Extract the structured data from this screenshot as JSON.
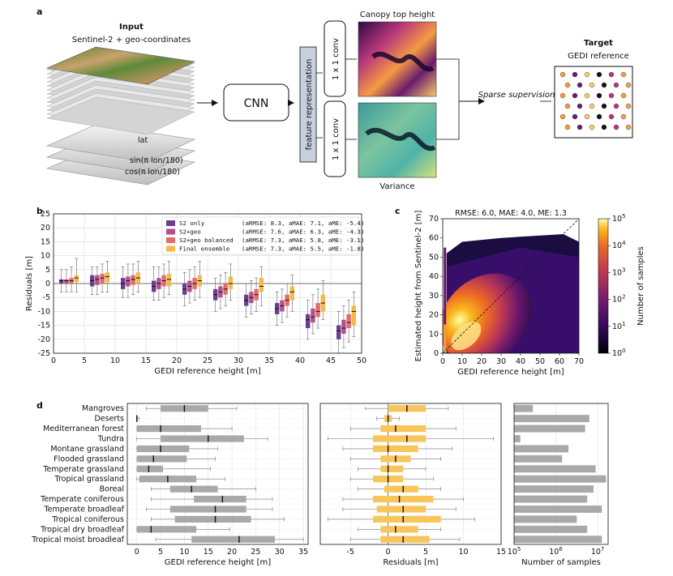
{
  "panel_a": {
    "letter": "a",
    "input_title": "Input",
    "input_subtitle": "Sentinel-2 + geo-coordinates",
    "layer_lat": "lat",
    "layer_sin": "sin(π lon/180)",
    "layer_cos": "cos(π lon/180)",
    "cnn": "CNN",
    "feature": "feature representation",
    "conv_top": "1 x 1 conv",
    "conv_bottom": "1 x 1 conv",
    "canopy_title": "Canopy top height",
    "variance_title": "Variance",
    "sparse": "Sparse supervision",
    "target_title": "Target",
    "target_subtitle": "GEDI reference",
    "colors": {
      "forest": "#4a7a2c",
      "terrain": "#c9a26a",
      "heat_dark": "#2b0a45",
      "heat_mid": "#b7377a",
      "heat_light": "#f9c96a",
      "var_teal": "#4fb3a8",
      "var_yellow": "#d8e27a",
      "feature_box": "#c6cfdd"
    }
  },
  "panel_b": {
    "letter": "b"
  },
  "panel_c": {
    "letter": "c"
  },
  "panel_d": {
    "letter": "d"
  },
  "chart_data": [
    {
      "id": "b",
      "type": "box",
      "xlabel": "GEDI reference height [m]",
      "ylabel": "Residuals [m]",
      "xlim": [
        0,
        50
      ],
      "ylim": [
        -25,
        25
      ],
      "xticks": [
        0,
        5,
        10,
        15,
        20,
        25,
        30,
        35,
        40,
        45,
        50
      ],
      "yticks": [
        -25,
        -20,
        -15,
        -10,
        -5,
        0,
        5,
        10,
        15,
        20,
        25
      ],
      "grid": true,
      "legend_position": "top-right",
      "categories": [
        2.5,
        7.5,
        12.5,
        17.5,
        22.5,
        27.5,
        32.5,
        37.5,
        42.5,
        47.5
      ],
      "series": [
        {
          "name": "S2 only",
          "stats": "(aRMSE: 8.3, aMAE: 7.1, aME: -5.4)",
          "color": "#6b3d8f",
          "boxes": [
            [
              -3,
              0,
              1,
              1.5,
              5
            ],
            [
              -4,
              -1,
              1,
              3,
              6
            ],
            [
              -5,
              -2,
              0,
              2,
              6
            ],
            [
              -6,
              -3,
              -1,
              1,
              6
            ],
            [
              -8,
              -4,
              -2,
              0,
              4
            ],
            [
              -10,
              -6,
              -4,
              -2,
              2
            ],
            [
              -12,
              -8,
              -6,
              -4,
              0
            ],
            [
              -15,
              -11,
              -9,
              -7,
              -3
            ],
            [
              -20,
              -16,
              -13,
              -11,
              -6
            ],
            [
              -25,
              -20,
              -17,
              -15,
              -10
            ]
          ]
        },
        {
          "name": "S2+geo",
          "stats": "(aRMSE: 7.6, aMAE: 6.3, aME: -4.3)",
          "color": "#b2508c",
          "boxes": [
            [
              -3,
              0,
              1,
              1.5,
              5
            ],
            [
              -4,
              -0.5,
              1.5,
              3,
              6
            ],
            [
              -5,
              -1,
              1,
              2.5,
              7
            ],
            [
              -6,
              -2,
              0,
              2,
              6
            ],
            [
              -7,
              -3,
              -1,
              1,
              5
            ],
            [
              -9,
              -5,
              -3,
              -1,
              3
            ],
            [
              -11,
              -7,
              -5,
              -3,
              1
            ],
            [
              -14,
              -10,
              -8,
              -6,
              -2
            ],
            [
              -18,
              -14,
              -12,
              -9,
              -4
            ],
            [
              -23,
              -18,
              -16,
              -13,
              -8
            ]
          ]
        },
        {
          "name": "S2+geo balanced",
          "stats": "(aRMSE: 7.3, aMAE: 5.8, aME: -3.1)",
          "color": "#e36b6b",
          "boxes": [
            [
              -3,
              0,
              1,
              2,
              6
            ],
            [
              -3,
              0,
              2,
              3.5,
              7
            ],
            [
              -4,
              -0.5,
              1.5,
              3,
              7
            ],
            [
              -5,
              -1,
              1,
              3,
              7
            ],
            [
              -6,
              -2,
              0,
              2,
              6
            ],
            [
              -8,
              -4,
              -2,
              0,
              4
            ],
            [
              -10,
              -6,
              -4,
              -2,
              2
            ],
            [
              -12,
              -8,
              -6,
              -4,
              0
            ],
            [
              -16,
              -12,
              -10,
              -7,
              -2
            ],
            [
              -21,
              -16,
              -14,
              -11,
              -6
            ]
          ]
        },
        {
          "name": "Final ensemble",
          "stats": "(aRMSE: 7.3, aMAE: 5.5, aME: -1.8)",
          "color": "#f7b84a",
          "boxes": [
            [
              -3,
              0.5,
              2,
              3,
              9
            ],
            [
              -3,
              0.5,
              2.5,
              4,
              8
            ],
            [
              -3,
              0,
              2,
              4,
              8
            ],
            [
              -4,
              -1,
              1.5,
              3.5,
              8
            ],
            [
              -5,
              -1,
              1,
              3,
              8
            ],
            [
              -6,
              -2,
              0,
              2.5,
              7
            ],
            [
              -8,
              -3,
              -1,
              2,
              6
            ],
            [
              -10,
              -6,
              -3,
              -1,
              3
            ],
            [
              -13,
              -10,
              -7,
              -4,
              1
            ],
            [
              -19,
              -15,
              -10,
              -8,
              -3
            ]
          ]
        }
      ]
    },
    {
      "id": "c",
      "type": "heatmap",
      "title": "RMSE: 6.0, MAE: 4.0, ME: 1.3",
      "xlabel": "GEDI reference height [m]",
      "ylabel": "Estimated height from Sentinel-2 [m]",
      "xlim": [
        0,
        70
      ],
      "ylim": [
        0,
        70
      ],
      "xticks": [
        0,
        10,
        20,
        30,
        40,
        50,
        60,
        70
      ],
      "yticks": [
        0,
        10,
        20,
        30,
        40,
        50,
        60,
        70
      ],
      "colorbar_label": "Number of samples",
      "colorbar_ticks": [
        "10^0",
        "10^1",
        "10^2",
        "10^3",
        "10^4",
        "10^5"
      ],
      "colorbar_exponents": [
        0,
        1,
        2,
        3,
        4,
        5
      ],
      "diagonal": "dashed 1:1 line"
    },
    {
      "id": "d-height",
      "type": "box",
      "orientation": "horizontal",
      "xlabel": "GEDI reference height [m]",
      "xlim": [
        -2,
        36
      ],
      "xticks": [
        0,
        5,
        10,
        15,
        20,
        25,
        30,
        35
      ],
      "color": "#a9a9a9",
      "categories": [
        "Mangroves",
        "Deserts",
        "Mediterranean forest",
        "Tundra",
        "Montane grassland",
        "Flooded grassland",
        "Temperate grassland",
        "Tropical grassland",
        "Boreal",
        "Temperate coniferous",
        "Temperate broadleaf",
        "Tropical coniferous",
        "Tropical dry broadleaf",
        "Tropical moist broadleaf"
      ],
      "boxes": [
        [
          2,
          5,
          10,
          15,
          21
        ],
        [
          0,
          0,
          0,
          0,
          0.5
        ],
        [
          0,
          0,
          5,
          13.5,
          20
        ],
        [
          0,
          5,
          15,
          22.5,
          27.5
        ],
        [
          0,
          0,
          5,
          11,
          17
        ],
        [
          0,
          0,
          3.5,
          10.5,
          16.5
        ],
        [
          0,
          0,
          2.5,
          5.5,
          15.5
        ],
        [
          0,
          0.5,
          6.5,
          12.5,
          18.5
        ],
        [
          3,
          7,
          11.5,
          17,
          25
        ],
        [
          3,
          12,
          18,
          23,
          28.5
        ],
        [
          2,
          7,
          16.5,
          23,
          28.5
        ],
        [
          3,
          8,
          16.5,
          24,
          31
        ],
        [
          0,
          0,
          3,
          12.5,
          19.5
        ],
        [
          4,
          11.5,
          21.5,
          29,
          35
        ]
      ]
    },
    {
      "id": "d-residuals",
      "type": "box",
      "orientation": "horizontal",
      "xlabel": "Residuals [m]",
      "xlim": [
        -9,
        15
      ],
      "xticks": [
        -5,
        0,
        5,
        10,
        15
      ],
      "color": "#f7c55a",
      "categories": [
        "Mangroves",
        "Deserts",
        "Mediterranean forest",
        "Tundra",
        "Montane grassland",
        "Flooded grassland",
        "Temperate grassland",
        "Tropical grassland",
        "Boreal",
        "Temperate coniferous",
        "Temperate broadleaf",
        "Tropical coniferous",
        "Tropical dry broadleaf",
        "Tropical moist broadleaf"
      ],
      "boxes": [
        [
          -3,
          0,
          2.5,
          5,
          8
        ],
        [
          -1.5,
          -0.5,
          0,
          0.5,
          1.5
        ],
        [
          -5,
          -1,
          1,
          5,
          9
        ],
        [
          -8,
          -2,
          2.5,
          5,
          14
        ],
        [
          -6,
          -2,
          0,
          4,
          8.5
        ],
        [
          -5,
          -1,
          1,
          3,
          7
        ],
        [
          -4,
          -1,
          0,
          2,
          5
        ],
        [
          -5,
          -2,
          0,
          2,
          6
        ],
        [
          -4,
          -0.5,
          2,
          4,
          7
        ],
        [
          -6,
          -2,
          1.5,
          6,
          10
        ],
        [
          -6,
          -1.5,
          2,
          5,
          9
        ],
        [
          -8,
          -2,
          2,
          7,
          11.5
        ],
        [
          -4,
          -1,
          1,
          4,
          7
        ],
        [
          -5,
          -1,
          2,
          5.5,
          9.5
        ]
      ]
    },
    {
      "id": "d-samples",
      "type": "bar",
      "orientation": "horizontal",
      "xlabel": "Number of samples",
      "xscale": "log",
      "xlim_exponents": [
        5,
        7.25
      ],
      "xticks": [
        "10^5",
        "10^6",
        "10^7"
      ],
      "xtick_exponents": [
        5,
        6,
        7
      ],
      "color": "#a9a9a9",
      "categories": [
        "Mangroves",
        "Deserts",
        "Mediterranean forest",
        "Tundra",
        "Montane grassland",
        "Flooded grassland",
        "Temperate grassland",
        "Tropical grassland",
        "Boreal",
        "Temperate coniferous",
        "Temperate broadleaf",
        "Tropical coniferous",
        "Tropical dry broadleaf",
        "Tropical moist broadleaf"
      ],
      "log10_values": [
        5.45,
        6.8,
        6.7,
        5.15,
        6.3,
        6.15,
        6.95,
        7.2,
        6.9,
        6.75,
        7.1,
        6.5,
        6.75,
        7.1
      ]
    }
  ]
}
